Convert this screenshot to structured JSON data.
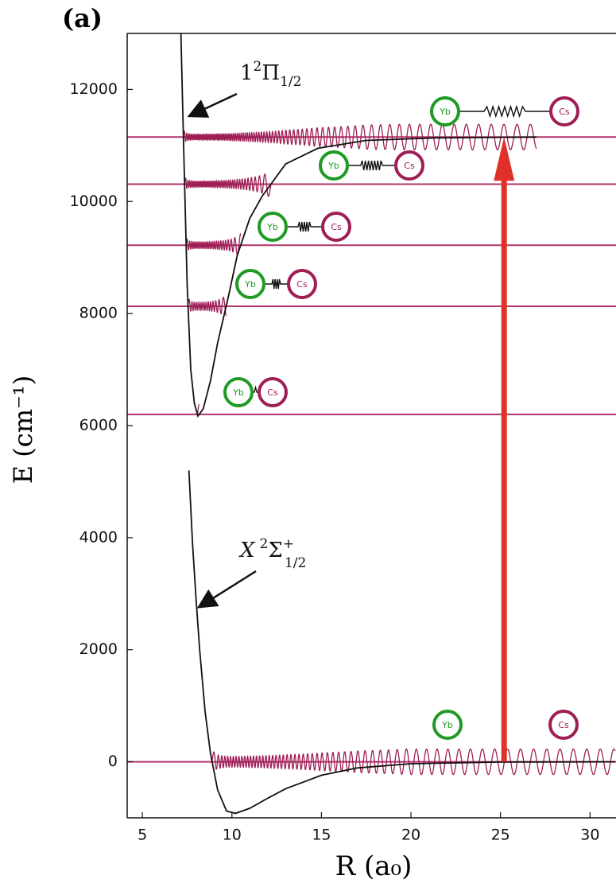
{
  "chart_data": {
    "type": "potential",
    "panel_label": "(a)",
    "x_label": "R (a₀)",
    "y_label": "E (cm⁻¹)",
    "xlim": [
      4.15,
      31.45
    ],
    "ylim": [
      -1000,
      13000
    ],
    "xticks": [
      5,
      10,
      15,
      20,
      25,
      30
    ],
    "yticks": [
      0,
      2000,
      4000,
      6000,
      8000,
      10000,
      12000
    ],
    "series": [
      {
        "color": "#111111",
        "x": [
          7.6,
          7.8,
          8.0,
          8.2,
          8.5,
          8.8,
          9.2,
          9.7,
          10.2,
          11,
          12,
          13,
          15,
          17,
          20,
          25,
          31.4
        ],
        "values": [
          5200,
          3900,
          2900,
          2000,
          900,
          150,
          -500,
          -880,
          -920,
          -830,
          -650,
          -480,
          -240,
          -110,
          -35,
          -5,
          0
        ]
      },
      {
        "color": "#111111",
        "x": [
          7.15,
          7.3,
          7.5,
          7.7,
          7.9,
          8.1,
          8.4,
          8.8,
          9.2,
          9.8,
          10.3,
          11,
          11.7,
          13,
          14.8,
          17.5,
          21.4,
          27
        ],
        "values": [
          13000,
          11000,
          8500,
          7000,
          6400,
          6170,
          6300,
          6800,
          7475,
          8300,
          9040,
          9700,
          10100,
          10670,
          10950,
          11090,
          11135,
          11150
        ]
      }
    ],
    "levels": {
      "color": "#b0336b",
      "values": [
        0,
        6200,
        8130,
        9220,
        10310,
        11150
      ]
    },
    "arrow": {
      "color": "#e0302a",
      "x": 25.2,
      "from": 0,
      "to": 11150
    },
    "annotations": [
      {
        "base": "1",
        "sup": "2",
        "symbol": "Π",
        "sub": "1/2"
      },
      {
        "base": "X",
        "sup": "2",
        "symbol": "Σ",
        "symbol_sup": "+",
        "sub": "1/2"
      }
    ],
    "molecules": [
      {
        "atom1": "Yb",
        "atom2": "Cs"
      },
      {
        "atom1": "Yb",
        "atom2": "Cs"
      },
      {
        "atom1": "Yb",
        "atom2": "Cs"
      },
      {
        "atom1": "Yb",
        "atom2": "Cs"
      },
      {
        "atom1": "Yb",
        "atom2": "Cs"
      },
      {
        "atom1": "Yb",
        "atom2": "Cs"
      }
    ]
  }
}
